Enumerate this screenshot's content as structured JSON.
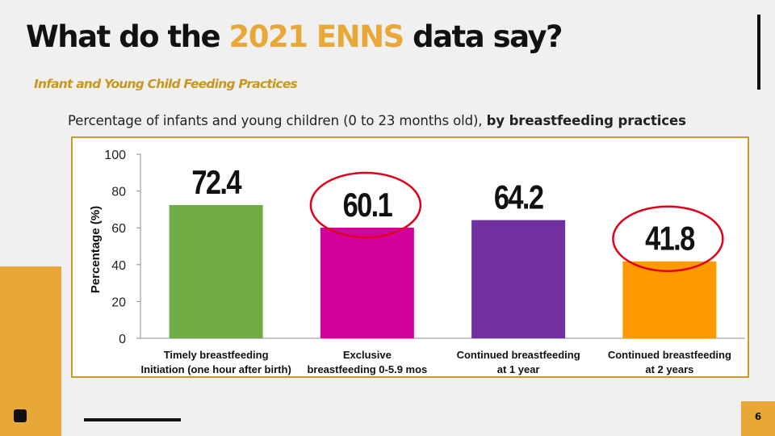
{
  "slide": {
    "title_pre": "What do the ",
    "title_highlight": "2021 ENNS",
    "title_post": " data say?",
    "subtitle": "Infant and Young Child Feeding Practices",
    "caption_pre": "Percentage of infants and young children (0 to 23 months old), ",
    "caption_bold": "by breastfeeding practices",
    "page_number": "6",
    "colors": {
      "accent": "#e8a838",
      "subtitle": "#c9971c",
      "frame": "#c89a2e"
    }
  },
  "chart_data": {
    "type": "bar",
    "ylabel": "Percentage (%)",
    "ylim": [
      0,
      100
    ],
    "yticks": [
      0,
      20,
      40,
      60,
      80,
      100
    ],
    "categories": [
      [
        "Timely breastfeeding",
        "Initiation (one hour after birth)"
      ],
      [
        "Exclusive",
        "breastfeeding 0-5.9 mos"
      ],
      [
        "Continued breastfeeding",
        "at 1 year"
      ],
      [
        "Continued breastfeeding",
        "at 2 years"
      ]
    ],
    "values": [
      72.4,
      60.1,
      64.2,
      41.8
    ],
    "data_labels": [
      "72.4",
      "60.1",
      "64.2",
      "41.8"
    ],
    "colors": [
      "#70ad47",
      "#d4009b",
      "#7030a0",
      "#ff9900"
    ],
    "highlighted": [
      false,
      true,
      false,
      true
    ],
    "highlight_color": "#e0001b",
    "grid": false,
    "legend": "none"
  }
}
